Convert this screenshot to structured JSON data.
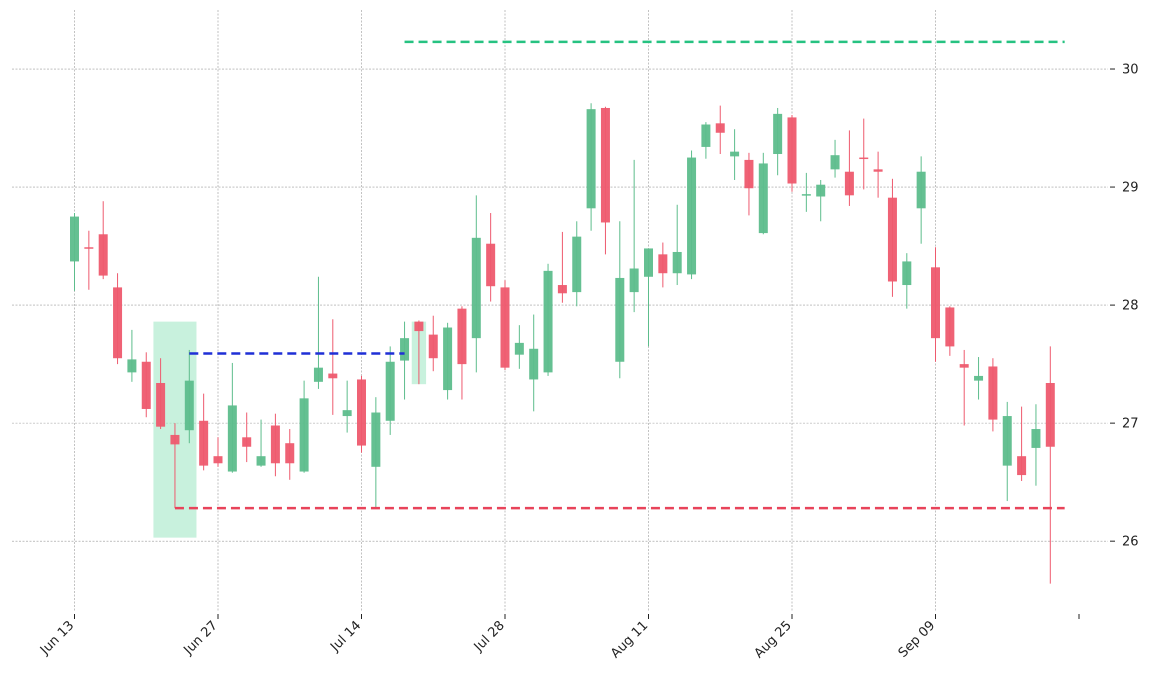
{
  "chart_data": {
    "type": "candlestick",
    "title": "",
    "xlabel": "",
    "ylabel": "",
    "y_axis_side": "right",
    "ylim": [
      25.4,
      30.5
    ],
    "grid": true,
    "x_tick_labels": [
      "Jun 13",
      "Jun 27",
      "Jul 14",
      "Jul 28",
      "Aug 11",
      "Aug 25",
      "Sep 09",
      ""
    ],
    "y_ticks": [
      26,
      27,
      28,
      29,
      30
    ],
    "colors": {
      "up": "#5dbd8c",
      "down": "#ee5a6e",
      "resistance": "#26c281",
      "support": "#e8435a",
      "breakout": "#1f2fd6",
      "zone": "#a3e8c6"
    },
    "horizontal_lines": [
      {
        "role": "resistance",
        "y": 30.23,
        "start_index": 23,
        "end_index": 69
      },
      {
        "role": "support",
        "y": 26.28,
        "start_index": 7,
        "end_index": 69
      },
      {
        "role": "breakout",
        "y": 27.59,
        "start_index": 8,
        "end_index": 23
      }
    ],
    "highlight_zones": [
      {
        "start_index": 5.5,
        "end_index": 8.5,
        "y_low": 26.03,
        "y_high": 27.86
      },
      {
        "start_index": 23.5,
        "end_index": 24.5,
        "y_low": 27.33,
        "y_high": 27.86
      }
    ],
    "candles": [
      {
        "date": "Jun 13",
        "open": 28.37,
        "high": 28.78,
        "low": 28.12,
        "close": 28.75
      },
      {
        "date": "Jun 14",
        "open": 28.49,
        "high": 28.63,
        "low": 28.13,
        "close": 28.48
      },
      {
        "date": "Jun 15",
        "open": 28.6,
        "high": 28.88,
        "low": 28.22,
        "close": 28.25
      },
      {
        "date": "Jun 16",
        "open": 28.15,
        "high": 28.27,
        "low": 27.5,
        "close": 27.55
      },
      {
        "date": "Jun 17",
        "open": 27.43,
        "high": 27.79,
        "low": 27.35,
        "close": 27.54
      },
      {
        "date": "Jun 18",
        "open": 27.52,
        "high": 27.6,
        "low": 27.05,
        "close": 27.12
      },
      {
        "date": "Jun 19",
        "open": 27.34,
        "high": 27.55,
        "low": 26.95,
        "close": 26.97
      },
      {
        "date": "Jun 20",
        "open": 26.9,
        "high": 27.0,
        "low": 26.28,
        "close": 26.82
      },
      {
        "date": "Jun 21",
        "open": 26.94,
        "high": 27.62,
        "low": 26.83,
        "close": 27.36
      },
      {
        "date": "Jun 22",
        "open": 27.02,
        "high": 27.25,
        "low": 26.6,
        "close": 26.64
      },
      {
        "date": "Jun 23",
        "open": 26.72,
        "high": 26.88,
        "low": 26.63,
        "close": 26.66
      },
      {
        "date": "Jun 24",
        "open": 26.59,
        "high": 27.51,
        "low": 26.58,
        "close": 27.15
      },
      {
        "date": "Jun 25",
        "open": 26.88,
        "high": 27.09,
        "low": 26.67,
        "close": 26.8
      },
      {
        "date": "Jun 26",
        "open": 26.64,
        "high": 27.03,
        "low": 26.63,
        "close": 26.72
      },
      {
        "date": "Jun 27",
        "open": 26.98,
        "high": 27.08,
        "low": 26.55,
        "close": 26.66
      },
      {
        "date": "Jun 28",
        "open": 26.83,
        "high": 26.95,
        "low": 26.52,
        "close": 26.66
      },
      {
        "date": "Jun 29",
        "open": 26.59,
        "high": 27.36,
        "low": 26.58,
        "close": 27.21
      },
      {
        "date": "Jun 30",
        "open": 27.35,
        "high": 28.24,
        "low": 27.29,
        "close": 27.47
      },
      {
        "date": "Jul 1",
        "open": 27.42,
        "high": 27.88,
        "low": 27.07,
        "close": 27.38
      },
      {
        "date": "Jul 2",
        "open": 27.06,
        "high": 27.36,
        "low": 26.92,
        "close": 27.11
      },
      {
        "date": "Jul 3",
        "open": 27.37,
        "high": 27.4,
        "low": 26.75,
        "close": 26.81
      },
      {
        "date": "Jul 4",
        "open": 26.63,
        "high": 27.22,
        "low": 26.28,
        "close": 27.09
      },
      {
        "date": "Jul 5",
        "open": 27.02,
        "high": 27.65,
        "low": 26.9,
        "close": 27.52
      },
      {
        "date": "Jul 6",
        "open": 27.53,
        "high": 27.86,
        "low": 27.2,
        "close": 27.72
      },
      {
        "date": "Jul 7",
        "open": 27.86,
        "high": 27.87,
        "low": 27.33,
        "close": 27.78
      },
      {
        "date": "Jul 8",
        "open": 27.75,
        "high": 27.91,
        "low": 27.44,
        "close": 27.55
      },
      {
        "date": "Jul 9",
        "open": 27.28,
        "high": 27.85,
        "low": 27.2,
        "close": 27.81
      },
      {
        "date": "Jul 10",
        "open": 27.97,
        "high": 27.99,
        "low": 27.2,
        "close": 27.5
      },
      {
        "date": "Jul 11",
        "open": 27.72,
        "high": 28.93,
        "low": 27.43,
        "close": 28.57
      },
      {
        "date": "Jul 12",
        "open": 28.52,
        "high": 28.78,
        "low": 28.03,
        "close": 28.16
      },
      {
        "date": "Jul 13",
        "open": 28.15,
        "high": 28.21,
        "low": 27.45,
        "close": 27.47
      },
      {
        "date": "Jul 14",
        "open": 27.58,
        "high": 27.83,
        "low": 27.46,
        "close": 27.68
      },
      {
        "date": "Jul 15",
        "open": 27.37,
        "high": 27.92,
        "low": 27.1,
        "close": 27.63
      },
      {
        "date": "Jul 16",
        "open": 27.43,
        "high": 28.35,
        "low": 27.4,
        "close": 28.29
      },
      {
        "date": "Jul 17",
        "open": 28.17,
        "high": 28.62,
        "low": 28.02,
        "close": 28.1
      },
      {
        "date": "Jul 18",
        "open": 28.11,
        "high": 28.71,
        "low": 27.99,
        "close": 28.58
      },
      {
        "date": "Jul 19",
        "open": 28.82,
        "high": 29.71,
        "low": 28.63,
        "close": 29.66
      },
      {
        "date": "Jul 20",
        "open": 29.67,
        "high": 29.68,
        "low": 28.43,
        "close": 28.7
      },
      {
        "date": "Jul 21",
        "open": 27.52,
        "high": 28.71,
        "low": 27.38,
        "close": 28.23
      },
      {
        "date": "Jul 22",
        "open": 28.11,
        "high": 29.23,
        "low": 27.94,
        "close": 28.31
      },
      {
        "date": "Jul 23",
        "open": 28.24,
        "high": 28.48,
        "low": 27.65,
        "close": 28.48
      },
      {
        "date": "Jul 24",
        "open": 28.43,
        "high": 28.53,
        "low": 28.15,
        "close": 28.27
      },
      {
        "date": "Jul 25",
        "open": 28.27,
        "high": 28.85,
        "low": 28.17,
        "close": 28.45
      },
      {
        "date": "Jul 26",
        "open": 28.26,
        "high": 29.31,
        "low": 28.22,
        "close": 29.25
      },
      {
        "date": "Jul 27",
        "open": 29.34,
        "high": 29.55,
        "low": 29.24,
        "close": 29.53
      },
      {
        "date": "Jul 28",
        "open": 29.54,
        "high": 29.69,
        "low": 29.28,
        "close": 29.46
      },
      {
        "date": "Jul 29",
        "open": 29.26,
        "high": 29.49,
        "low": 29.06,
        "close": 29.3
      },
      {
        "date": "Jul 30",
        "open": 29.23,
        "high": 29.29,
        "low": 28.76,
        "close": 28.99
      },
      {
        "date": "Jul 31",
        "open": 28.61,
        "high": 29.29,
        "low": 28.6,
        "close": 29.2
      },
      {
        "date": "Aug 1",
        "open": 29.28,
        "high": 29.67,
        "low": 29.1,
        "close": 29.62
      },
      {
        "date": "Aug 2",
        "open": 29.59,
        "high": 29.61,
        "low": 28.96,
        "close": 29.03
      },
      {
        "date": "Aug 3",
        "open": 28.93,
        "high": 29.12,
        "low": 28.79,
        "close": 28.94
      },
      {
        "date": "Aug 4",
        "open": 28.92,
        "high": 29.06,
        "low": 28.71,
        "close": 29.02
      },
      {
        "date": "Aug 5",
        "open": 29.15,
        "high": 29.4,
        "low": 29.08,
        "close": 29.27
      },
      {
        "date": "Aug 6",
        "open": 29.13,
        "high": 29.48,
        "low": 28.84,
        "close": 28.93
      },
      {
        "date": "Aug 7",
        "open": 29.25,
        "high": 29.58,
        "low": 28.98,
        "close": 29.24
      },
      {
        "date": "Aug 8",
        "open": 29.15,
        "high": 29.3,
        "low": 28.91,
        "close": 29.13
      },
      {
        "date": "Aug 9",
        "open": 28.91,
        "high": 29.07,
        "low": 28.07,
        "close": 28.2
      },
      {
        "date": "Aug 10",
        "open": 28.17,
        "high": 28.44,
        "low": 27.97,
        "close": 28.37
      },
      {
        "date": "Aug 11",
        "open": 28.82,
        "high": 29.26,
        "low": 28.52,
        "close": 29.13
      },
      {
        "date": "Aug 12",
        "open": 28.32,
        "high": 28.49,
        "low": 27.52,
        "close": 27.72
      },
      {
        "date": "Aug 13",
        "open": 27.98,
        "high": 27.99,
        "low": 27.57,
        "close": 27.65
      },
      {
        "date": "Aug 14",
        "open": 27.5,
        "high": 27.62,
        "low": 26.98,
        "close": 27.47
      },
      {
        "date": "Aug 15",
        "open": 27.36,
        "high": 27.56,
        "low": 27.2,
        "close": 27.4
      },
      {
        "date": "Aug 16",
        "open": 27.48,
        "high": 27.55,
        "low": 26.93,
        "close": 27.03
      },
      {
        "date": "Aug 17",
        "open": 26.64,
        "high": 27.18,
        "low": 26.34,
        "close": 27.06
      },
      {
        "date": "Aug 18",
        "open": 26.72,
        "high": 27.14,
        "low": 26.51,
        "close": 26.56
      },
      {
        "date": "Aug 19",
        "open": 26.79,
        "high": 27.16,
        "low": 26.47,
        "close": 26.95
      },
      {
        "date": "Aug 20",
        "open": 27.34,
        "high": 27.65,
        "low": 25.64,
        "close": 26.8
      }
    ]
  }
}
